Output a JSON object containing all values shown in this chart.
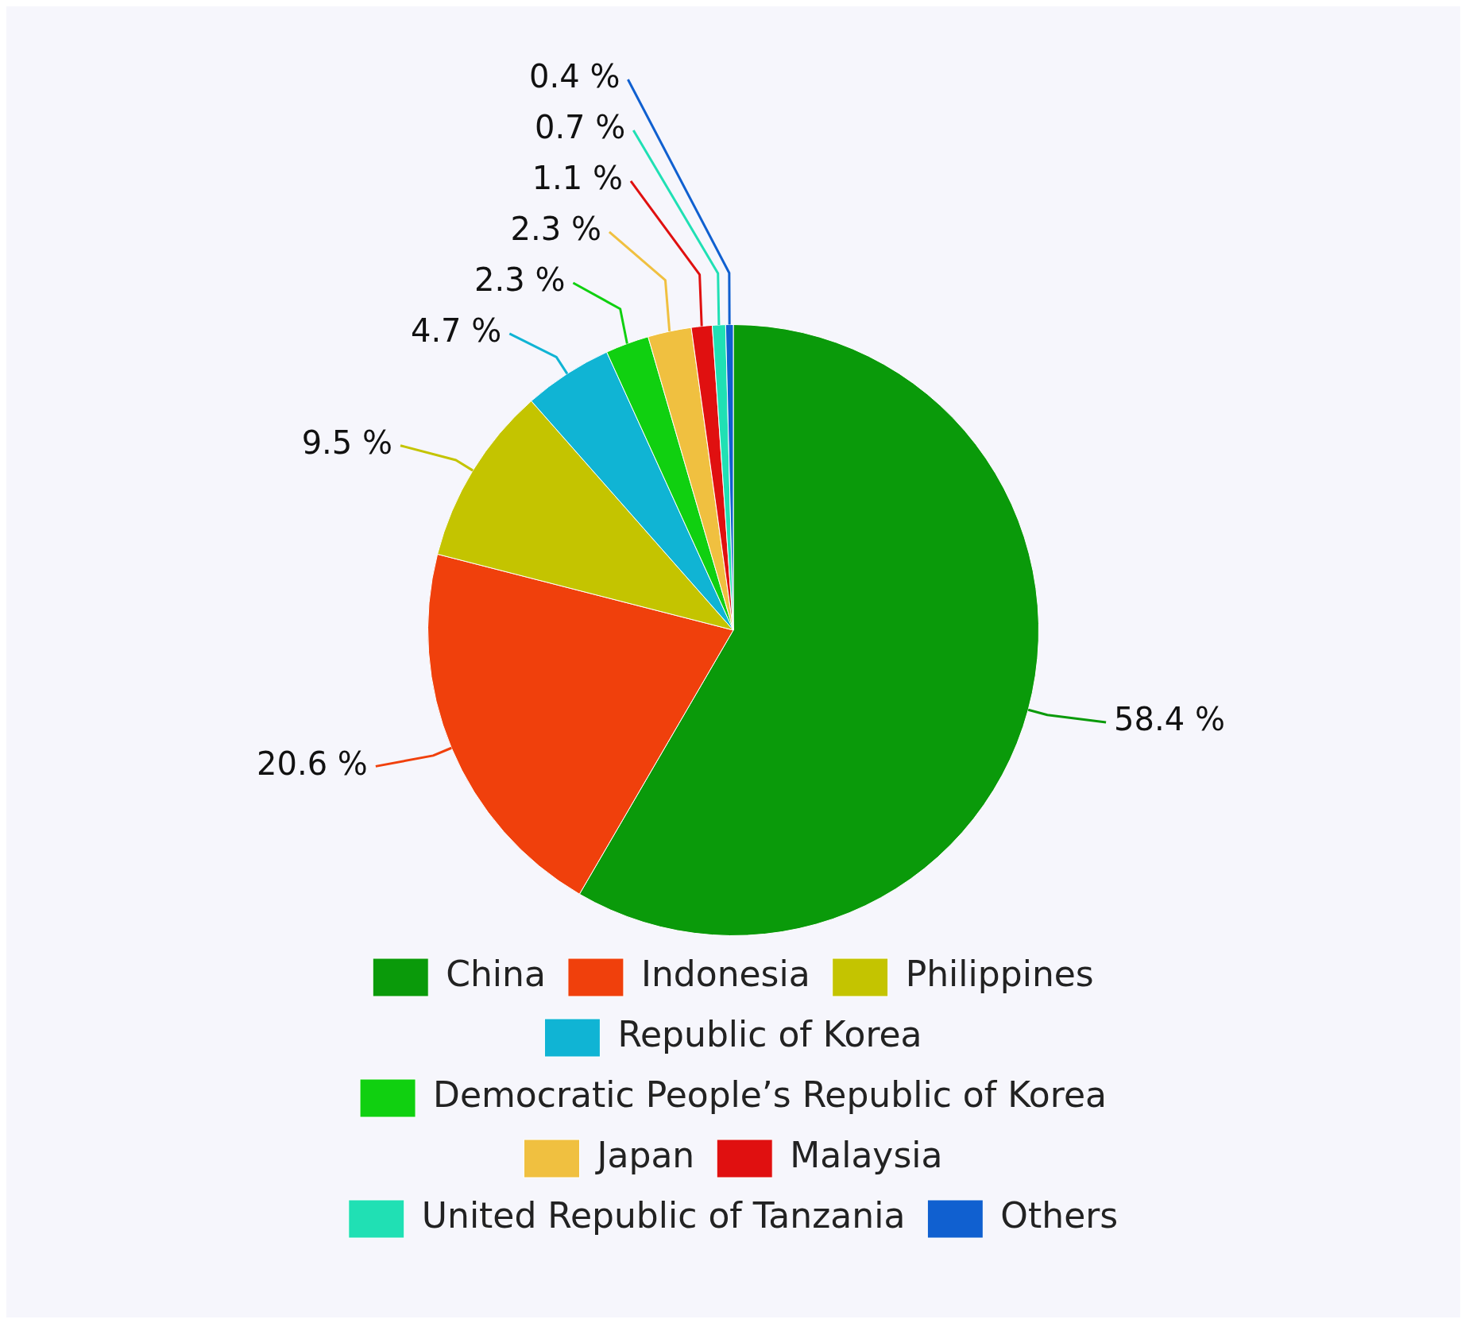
{
  "chart_data": {
    "type": "pie",
    "categories": [
      "China",
      "Indonesia",
      "Philippines",
      "Republic of Korea",
      "Democratic People’s Republic of Korea",
      "Japan",
      "Malaysia",
      "United Republic of Tanzania",
      "Others"
    ],
    "values": [
      58.4,
      20.6,
      9.5,
      4.7,
      2.3,
      2.3,
      1.1,
      0.7,
      0.4
    ],
    "value_labels": [
      "58.4 %",
      "20.6 %",
      "9.5 %",
      "4.7 %",
      "2.3 %",
      "2.3 %",
      "1.1 %",
      "0.7 %",
      "0.4 %"
    ],
    "colors": [
      "#0a9a0a",
      "#f0400c",
      "#c4c400",
      "#10b4d4",
      "#10d010",
      "#f0c040",
      "#e01010",
      "#20e0b4",
      "#1060d0"
    ],
    "legend": "bottom"
  }
}
